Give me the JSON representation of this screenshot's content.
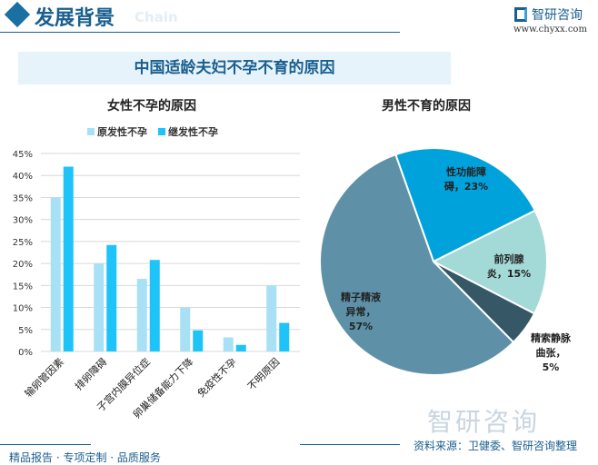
{
  "header": {
    "title": "发展背景",
    "subtitle": "Chain",
    "logo_name": "智研咨询",
    "logo_url": "www.chyxx.com"
  },
  "main_title": "中国适龄夫妇不孕不育的原因",
  "footer": {
    "left": "精品报告 · 专项定制 · 品质服务",
    "source": "资料来源：卫健委、智研咨询整理",
    "watermark": "智研咨询"
  },
  "chart_data": [
    {
      "type": "bar",
      "title": "女性不孕的原因",
      "categories": [
        "输卵管因素",
        "排卵障碍",
        "子宫内膜异位症",
        "卵巢储备能力下降",
        "免疫性不孕",
        "不明原因"
      ],
      "series": [
        {
          "name": "原发性不孕",
          "color": "#a8e0f5",
          "values": [
            35,
            20,
            16.5,
            10,
            3.2,
            15
          ]
        },
        {
          "name": "继发性不孕",
          "color": "#1ec3f8",
          "values": [
            42,
            24.2,
            20.8,
            4.8,
            1.5,
            6.5
          ]
        }
      ],
      "yticks": [
        "0%",
        "5%",
        "10%",
        "15%",
        "20%",
        "25%",
        "30%",
        "35%",
        "40%",
        "45%"
      ],
      "ylim": [
        0,
        45
      ],
      "grid": true,
      "legend": "top"
    },
    {
      "type": "pie",
      "title": "男性不育的原因",
      "slices": [
        {
          "label": "性功能障碍，23%",
          "value": 23,
          "color": "#00a2dc"
        },
        {
          "label": "前列腺炎，15%",
          "value": 15,
          "color": "#a3d9d6"
        },
        {
          "label": "精索静脉曲张，5%",
          "value": 5,
          "color": "#365866"
        },
        {
          "label": "精子精液异常，57%",
          "value": 57,
          "color": "#5e91a8"
        }
      ]
    }
  ]
}
